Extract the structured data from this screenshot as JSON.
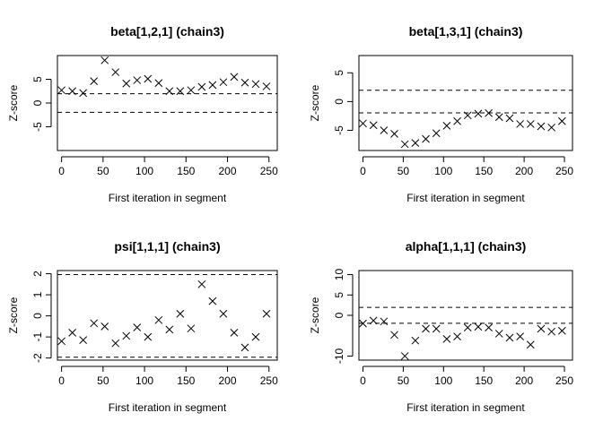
{
  "chart_data": [
    {
      "type": "scatter",
      "title": "beta[1,2,1] (chain3)",
      "xlabel": "First iteration in segment",
      "ylabel": "Z-score",
      "xlim": [
        -5,
        260
      ],
      "ylim": [
        -10,
        10
      ],
      "xticks": [
        "0",
        "50",
        "100",
        "150",
        "200",
        "250"
      ],
      "yticks": [
        "-5",
        "0",
        "5"
      ],
      "reference_lines": [
        -1.96,
        1.96
      ],
      "marker": "x",
      "x": [
        0,
        13,
        26,
        39,
        52,
        65,
        78,
        91,
        104,
        117,
        130,
        143,
        156,
        169,
        182,
        195,
        208,
        221,
        234,
        247
      ],
      "y": [
        2.7,
        2.5,
        2.1,
        4.6,
        9.0,
        6.5,
        4.1,
        4.8,
        5.1,
        4.2,
        2.5,
        2.5,
        2.7,
        3.4,
        3.8,
        4.4,
        5.5,
        4.3,
        4.0,
        3.5
      ]
    },
    {
      "type": "scatter",
      "title": "beta[1,3,1] (chain3)",
      "xlabel": "First iteration in segment",
      "ylabel": "Z-score",
      "xlim": [
        -5,
        260
      ],
      "ylim": [
        -8.5,
        8
      ],
      "xticks": [
        "0",
        "50",
        "100",
        "150",
        "200",
        "250"
      ],
      "yticks": [
        "-5",
        "0",
        "5"
      ],
      "reference_lines": [
        -1.96,
        1.96
      ],
      "marker": "x",
      "x": [
        0,
        13,
        26,
        39,
        52,
        65,
        78,
        91,
        104,
        117,
        130,
        143,
        156,
        169,
        182,
        195,
        208,
        221,
        234,
        247
      ],
      "y": [
        -3.8,
        -4.1,
        -5.0,
        -5.6,
        -7.4,
        -7.2,
        -6.5,
        -5.5,
        -4.2,
        -3.4,
        -2.4,
        -2.1,
        -2.0,
        -2.7,
        -2.9,
        -3.9,
        -3.9,
        -4.3,
        -4.5,
        -3.4
      ]
    },
    {
      "type": "scatter",
      "title": "psi[1,1,1] (chain3)",
      "xlabel": "First iteration in segment",
      "ylabel": "Z-score",
      "xlim": [
        -5,
        260
      ],
      "ylim": [
        -2.1,
        2.15
      ],
      "xticks": [
        "0",
        "50",
        "100",
        "150",
        "200",
        "250"
      ],
      "yticks": [
        "-2",
        "-1",
        "0",
        "1",
        "2"
      ],
      "reference_lines": [
        -1.96,
        1.96
      ],
      "marker": "x",
      "x": [
        0,
        13,
        26,
        39,
        52,
        65,
        78,
        91,
        104,
        117,
        130,
        143,
        156,
        169,
        182,
        195,
        208,
        221,
        234,
        247
      ],
      "y": [
        -1.2,
        -0.8,
        -1.15,
        -0.35,
        -0.5,
        -1.3,
        -0.95,
        -0.55,
        -1.0,
        -0.2,
        -0.65,
        0.1,
        -0.6,
        1.5,
        0.7,
        0.1,
        -0.8,
        -1.5,
        -1.0,
        0.1
      ]
    },
    {
      "type": "scatter",
      "title": "alpha[1,1,1] (chain3)",
      "xlabel": "First iteration in segment",
      "ylabel": "Z-score",
      "xlim": [
        -5,
        260
      ],
      "ylim": [
        -11,
        11
      ],
      "xticks": [
        "0",
        "50",
        "100",
        "150",
        "200",
        "250"
      ],
      "yticks": [
        "-10",
        "0",
        "5",
        "10"
      ],
      "reference_lines": [
        -1.96,
        1.96
      ],
      "marker": "x",
      "x": [
        0,
        13,
        26,
        39,
        52,
        65,
        78,
        91,
        104,
        117,
        130,
        143,
        156,
        169,
        182,
        195,
        208,
        221,
        234,
        247
      ],
      "y": [
        -2.0,
        -1.3,
        -1.5,
        -4.8,
        -10.0,
        -6.2,
        -3.3,
        -3.3,
        -5.8,
        -5.2,
        -3.0,
        -2.8,
        -3.0,
        -4.5,
        -5.5,
        -5.2,
        -7.2,
        -3.3,
        -4.0,
        -3.8
      ]
    }
  ]
}
